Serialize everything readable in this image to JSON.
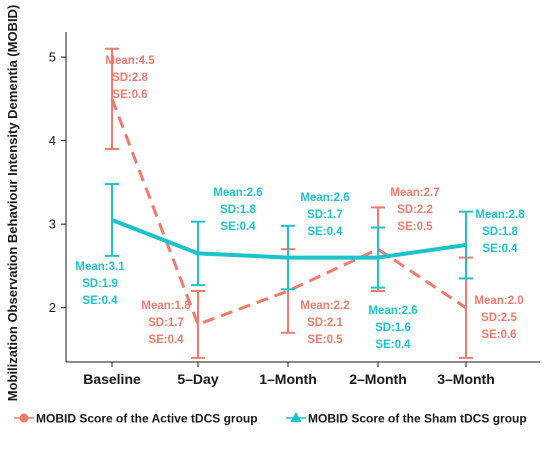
{
  "chart_data": {
    "type": "line",
    "categories": [
      "Baseline",
      "5–Day",
      "1–Month",
      "2–Month",
      "3–Month"
    ],
    "ylabel": "Mobilization Observation Behaviour Intensity Dementia (MOBID)",
    "xlabel": "",
    "ylim": [
      1.35,
      5.3
    ],
    "yticks": [
      2,
      3,
      4,
      5
    ],
    "grid": false,
    "legend_position": "bottom",
    "series": [
      {
        "name": "MOBID Score of the Active tDCS group",
        "color": "#f07a6e",
        "line_style": "dashed",
        "marker": "circle",
        "values": [
          4.5,
          1.8,
          2.2,
          2.7,
          2.0
        ],
        "error": [
          0.6,
          0.4,
          0.5,
          0.5,
          0.6
        ],
        "annotations": [
          {
            "mean": "Mean:4.5",
            "sd": "SD:2.8",
            "se": "SE:0.6"
          },
          {
            "mean": "Mean:1.8",
            "sd": "SD:1.7",
            "se": "SE:0.4"
          },
          {
            "mean": "Mean:2.2",
            "sd": "SD:2.1",
            "se": "SE:0.5"
          },
          {
            "mean": "Mean:2.7",
            "sd": "SD:2.2",
            "se": "SE:0.5"
          },
          {
            "mean": "Mean:2.0",
            "sd": "SD:2.5",
            "se": "SE:0.6"
          }
        ]
      },
      {
        "name": "MOBID Score of the Sham tDCS group",
        "color": "#1cc3c9",
        "line_style": "solid",
        "marker": "triangle",
        "values": [
          3.05,
          2.65,
          2.6,
          2.6,
          2.75
        ],
        "error": [
          0.43,
          0.38,
          0.38,
          0.36,
          0.4
        ],
        "annotations": [
          {
            "mean": "Mean:3.1",
            "sd": "SD:1.9",
            "se": "SE:0.4"
          },
          {
            "mean": "Mean:2.6",
            "sd": "SD:1.8",
            "se": "SE:0.4"
          },
          {
            "mean": "Mean:2.6",
            "sd": "SD:1.7",
            "se": "SE:0.4"
          },
          {
            "mean": "Mean:2.6",
            "sd": "SD:1.6",
            "se": "SE:0.4"
          },
          {
            "mean": "Mean:2.8",
            "sd": "SD:1.8",
            "se": "SE:0.4"
          }
        ]
      }
    ]
  }
}
